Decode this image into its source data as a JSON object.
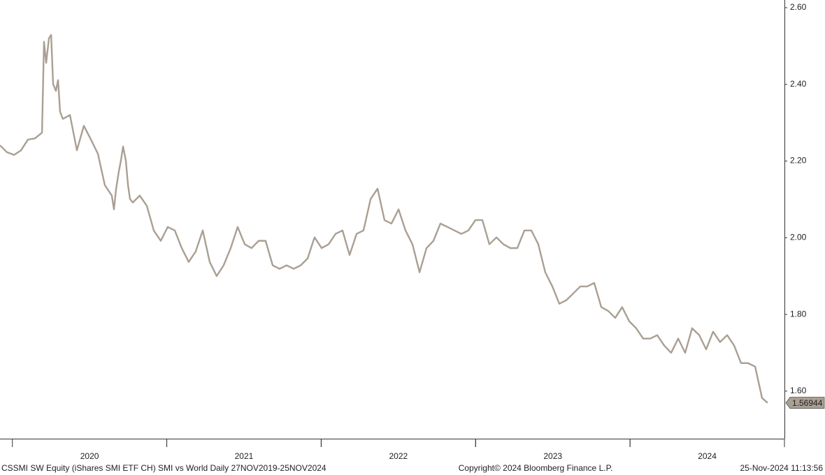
{
  "chart_data": {
    "type": "line",
    "footer_left": "CSSMI SW Equity (iShares SMI ETF CH) SMI vs World  Daily 27NOV2019-25NOV2024",
    "footer_center": "Copyright© 2024 Bloomberg Finance L.P.",
    "footer_right": "25-Nov-2024 11:13:56",
    "last_value": 1.56944,
    "xlim": [
      2019.92,
      2025.0
    ],
    "xticks": [
      {
        "value": 2020.5,
        "label": "2020"
      },
      {
        "value": 2021.5,
        "label": "2021"
      },
      {
        "value": 2022.5,
        "label": "2022"
      },
      {
        "value": 2023.5,
        "label": "2023"
      },
      {
        "value": 2024.5,
        "label": "2024"
      }
    ],
    "ylim": [
      1.476,
      2.62
    ],
    "yticks": [
      {
        "value": 1.6,
        "label": "1.60"
      },
      {
        "value": 1.8,
        "label": "1.80"
      },
      {
        "value": 2.0,
        "label": "2.00"
      },
      {
        "value": 2.2,
        "label": "2.20"
      },
      {
        "value": 2.4,
        "label": "2.40"
      },
      {
        "value": 2.6,
        "label": "2.60"
      }
    ],
    "x": [
      2019.92,
      2019.965,
      2020.011,
      2020.056,
      2020.101,
      2020.146,
      2020.192,
      2020.205,
      2020.219,
      2020.237,
      2020.251,
      2020.264,
      2020.282,
      2020.296,
      2020.309,
      2020.327,
      2020.373,
      2020.418,
      2020.463,
      2020.509,
      2020.554,
      2020.599,
      2020.644,
      2020.658,
      2020.672,
      2020.69,
      2020.703,
      2020.717,
      2020.735,
      2020.749,
      2020.762,
      2020.78,
      2020.825,
      2020.871,
      2020.916,
      2020.961,
      2021.006,
      2021.052,
      2021.097,
      2021.142,
      2021.187,
      2021.233,
      2021.278,
      2021.323,
      2021.368,
      2021.414,
      2021.459,
      2021.505,
      2021.549,
      2021.595,
      2021.64,
      2021.686,
      2021.73,
      2021.776,
      2021.822,
      2021.867,
      2021.912,
      2021.957,
      2022.003,
      2022.048,
      2022.093,
      2022.138,
      2022.184,
      2022.229,
      2022.274,
      2022.32,
      2022.365,
      2022.41,
      2022.455,
      2022.501,
      2022.546,
      2022.591,
      2022.637,
      2022.682,
      2022.727,
      2022.772,
      2022.818,
      2022.863,
      2022.908,
      2022.953,
      2022.999,
      2023.044,
      2023.089,
      2023.135,
      2023.18,
      2023.225,
      2023.27,
      2023.316,
      2023.361,
      2023.406,
      2023.451,
      2023.497,
      2023.542,
      2023.587,
      2023.633,
      2023.678,
      2023.723,
      2023.768,
      2023.814,
      2023.859,
      2023.904,
      2023.949,
      2023.995,
      2024.04,
      2024.085,
      2024.131,
      2024.176,
      2024.221,
      2024.266,
      2024.312,
      2024.357,
      2024.402,
      2024.448,
      2024.493,
      2024.538,
      2024.583,
      2024.629,
      2024.674,
      2024.719,
      2024.764,
      2024.81,
      2024.855,
      2024.891
    ],
    "series": [
      {
        "name": "SMI vs World",
        "color": "#aa9f93",
        "values": [
          2.241,
          2.223,
          2.216,
          2.228,
          2.256,
          2.259,
          2.274,
          2.511,
          2.456,
          2.52,
          2.529,
          2.401,
          2.383,
          2.411,
          2.329,
          2.31,
          2.32,
          2.228,
          2.292,
          2.256,
          2.219,
          2.137,
          2.11,
          2.074,
          2.128,
          2.174,
          2.201,
          2.238,
          2.201,
          2.137,
          2.101,
          2.092,
          2.11,
          2.083,
          2.019,
          1.992,
          2.028,
          2.019,
          1.973,
          1.937,
          1.964,
          2.019,
          1.937,
          1.9,
          1.928,
          1.973,
          2.028,
          1.983,
          1.973,
          1.992,
          1.992,
          1.928,
          1.919,
          1.928,
          1.919,
          1.928,
          1.946,
          2.001,
          1.973,
          1.983,
          2.01,
          2.019,
          1.955,
          2.01,
          2.019,
          2.101,
          2.128,
          2.046,
          2.037,
          2.074,
          2.019,
          1.983,
          1.91,
          1.973,
          1.992,
          2.037,
          2.028,
          2.019,
          2.01,
          2.019,
          2.046,
          2.046,
          1.983,
          2.001,
          1.983,
          1.973,
          1.973,
          2.019,
          2.019,
          1.983,
          1.91,
          1.873,
          1.828,
          1.837,
          1.855,
          1.873,
          1.873,
          1.882,
          1.819,
          1.809,
          1.791,
          1.819,
          1.782,
          1.764,
          1.737,
          1.737,
          1.746,
          1.719,
          1.7,
          1.737,
          1.7,
          1.764,
          1.746,
          1.709,
          1.755,
          1.728,
          1.746,
          1.719,
          1.673,
          1.673,
          1.664,
          1.582,
          1.56944
        ]
      }
    ]
  }
}
